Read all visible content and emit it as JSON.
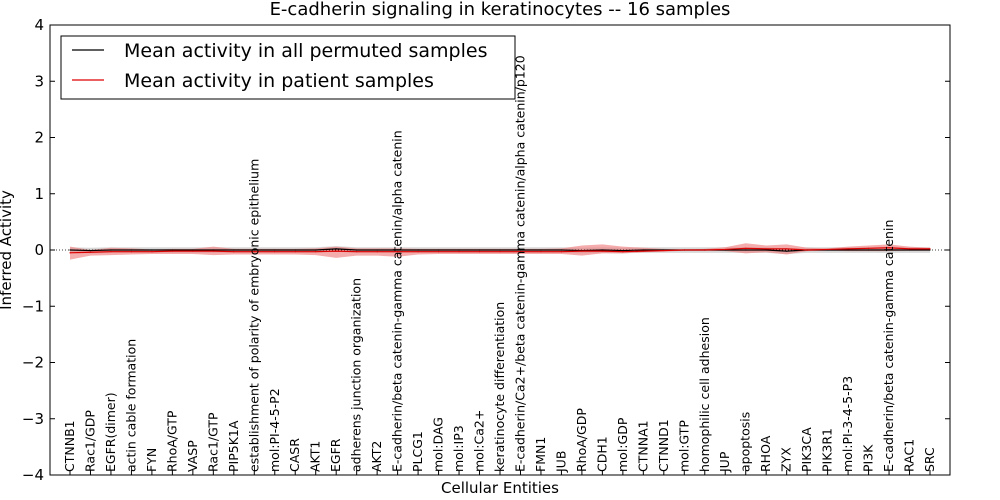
{
  "chart_data": {
    "type": "line",
    "title": "E-cadherin signaling in keratinocytes -- 16 samples",
    "xlabel": "Cellular Entities",
    "ylabel": "Inferred Activity",
    "ylim": [
      -4,
      4
    ],
    "yticks": [
      "−4",
      "−3",
      "−2",
      "−1",
      "0",
      "1",
      "2",
      "3",
      "4"
    ],
    "legend_position": "upper-left",
    "categories": [
      "CTNNB1",
      "Rac1/GDP",
      "EGFR(dimer)",
      "actin cable formation",
      "FYN",
      "RhoA/GTP",
      "VASP",
      "Rac1/GTP",
      "PIP5K1A",
      "establishment of polarity of embryonic epithelium",
      "mol:PI-4-5-P2",
      "CASR",
      "AKT1",
      "EGFR",
      "adherens junction organization",
      "AKT2",
      "E-cadherin/beta catenin-gamma catenin/alpha catenin",
      "PLCG1",
      "mol:DAG",
      "mol:IP3",
      "mol:Ca2+",
      "keratinocyte differentiation",
      "E-cadherin/Ca2+/beta catenin-gamma catenin/alpha catenin/p120",
      "FMN1",
      "JUB",
      "RhoA/GDP",
      "CDH1",
      "mol:GDP",
      "CTNNA1",
      "CTNND1",
      "mol:GTP",
      "homophilic cell adhesion",
      "JUP",
      "apoptosis",
      "RHOA",
      "ZYX",
      "PIK3CA",
      "PIK3R1",
      "mol:PI-3-4-5-P3",
      "PI3K",
      "E-cadherin/beta catenin-gamma catenin",
      "RAC1",
      "SRC"
    ],
    "series": [
      {
        "name": "Mean activity in all permuted samples",
        "color": "#000000",
        "values": [
          0.0,
          -0.01,
          0.0,
          0.0,
          0.0,
          0.0,
          0.0,
          0.0,
          0.0,
          0.0,
          0.0,
          0.0,
          0.0,
          0.02,
          0.0,
          0.0,
          0.0,
          0.0,
          0.0,
          0.0,
          0.0,
          0.0,
          0.0,
          0.0,
          0.0,
          -0.01,
          0.0,
          -0.01,
          0.0,
          0.0,
          0.0,
          0.0,
          0.0,
          0.0,
          0.0,
          -0.02,
          0.0,
          0.0,
          0.0,
          0.0,
          0.0,
          0.0,
          0.0
        ],
        "band": 0.05,
        "band_color": "#c8c8c8"
      },
      {
        "name": "Mean activity in patient samples",
        "color": "#dd0000",
        "values": [
          -0.05,
          -0.04,
          -0.03,
          -0.03,
          -0.03,
          -0.02,
          -0.02,
          -0.02,
          -0.03,
          -0.03,
          -0.03,
          -0.03,
          -0.03,
          -0.02,
          -0.03,
          -0.03,
          -0.03,
          -0.03,
          -0.03,
          -0.03,
          -0.03,
          -0.03,
          -0.03,
          -0.03,
          -0.03,
          -0.02,
          -0.02,
          -0.03,
          -0.02,
          -0.01,
          0.0,
          0.0,
          0.01,
          0.03,
          0.02,
          0.02,
          0.0,
          0.01,
          0.02,
          0.03,
          0.04,
          0.02,
          0.02
        ],
        "band_upper": [
          0.06,
          0.0,
          0.04,
          0.03,
          0.01,
          0.02,
          0.02,
          0.06,
          0.02,
          0.02,
          0.02,
          0.02,
          0.03,
          0.06,
          0.03,
          0.03,
          0.03,
          0.02,
          0.02,
          0.02,
          0.02,
          0.02,
          0.02,
          0.02,
          0.03,
          0.08,
          0.1,
          0.06,
          0.04,
          0.02,
          0.01,
          0.02,
          0.05,
          0.12,
          0.08,
          0.1,
          0.04,
          0.03,
          0.06,
          0.08,
          0.1,
          0.06,
          0.04
        ],
        "band_lower": [
          -0.17,
          -0.1,
          -0.09,
          -0.08,
          -0.07,
          -0.07,
          -0.07,
          -0.09,
          -0.08,
          -0.08,
          -0.08,
          -0.08,
          -0.09,
          -0.14,
          -0.1,
          -0.1,
          -0.12,
          -0.08,
          -0.07,
          -0.07,
          -0.07,
          -0.07,
          -0.07,
          -0.07,
          -0.07,
          -0.1,
          -0.06,
          -0.06,
          -0.04,
          -0.03,
          -0.01,
          -0.01,
          -0.02,
          -0.06,
          -0.04,
          -0.08,
          -0.02,
          -0.01,
          -0.02,
          -0.02,
          -0.02,
          -0.01,
          -0.01
        ],
        "band_color": "#f08080"
      }
    ]
  }
}
